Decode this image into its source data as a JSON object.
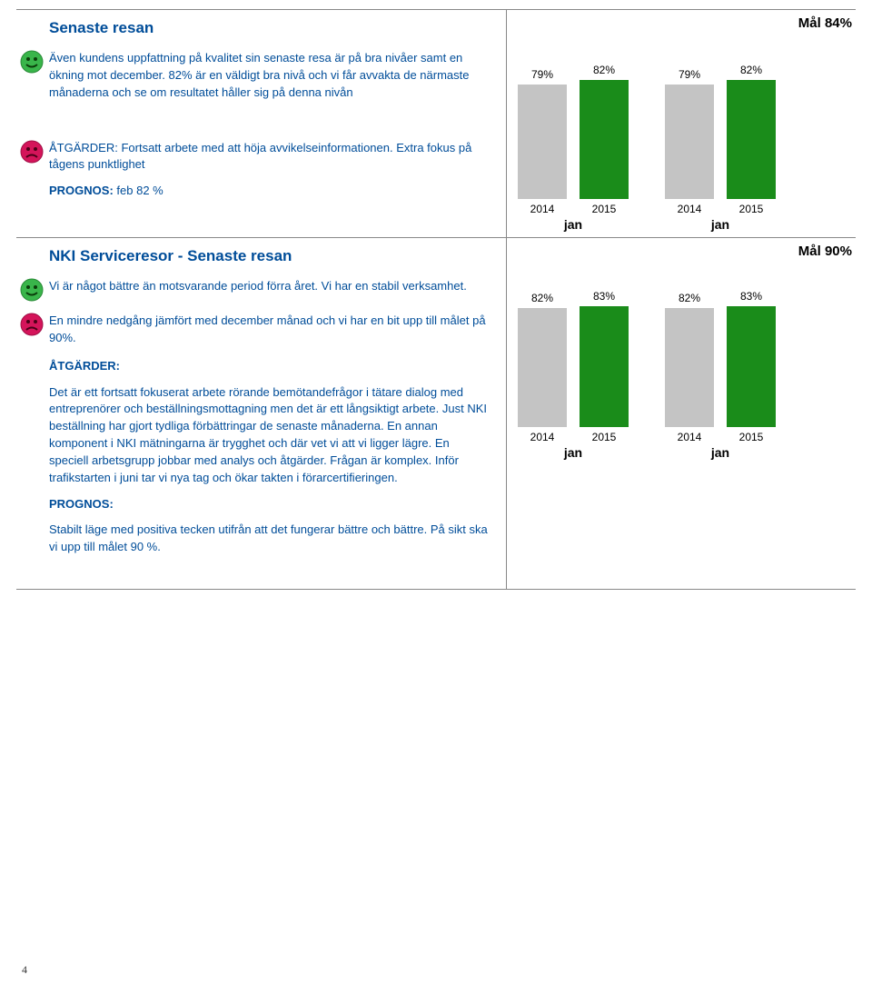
{
  "colors": {
    "heading": "#004d99",
    "body_text": "#004d99",
    "green_face": "#39b54a",
    "red_face": "#d4145a",
    "bar_grey": "#c4c4c4",
    "bar_green": "#1a8c1a",
    "black": "#000000"
  },
  "page_number": "4",
  "section1": {
    "title": "Senaste resan",
    "goal": "Mål 84%",
    "p1": "Även kundens uppfattning på kvalitet sin senaste resa är på bra nivåer samt en ökning mot december. 82% är en väldigt bra nivå och vi får avvakta de närmaste månaderna och se om resultatet håller sig på denna nivån",
    "p2": "ÅTGÄRDER: Fortsatt arbete med att höja avvikelseinformationen. Extra fokus på tågens punktlighet",
    "p3_label": "PROGNOS:",
    "p3": " feb 82 %",
    "chart": {
      "type": "bar",
      "ymax": 100,
      "bar_height_max": 160,
      "bar_colors": [
        "#c4c4c4",
        "#1a8c1a",
        "#c4c4c4",
        "#1a8c1a"
      ],
      "pairs": [
        {
          "xlabel": "jan",
          "bars": [
            {
              "cat": "2014",
              "label": "79%",
              "value": 79
            },
            {
              "cat": "2015",
              "label": "82%",
              "value": 82
            }
          ]
        },
        {
          "xlabel": "jan",
          "bars": [
            {
              "cat": "2014",
              "label": "79%",
              "value": 79
            },
            {
              "cat": "2015",
              "label": "82%",
              "value": 82
            }
          ]
        }
      ]
    }
  },
  "section2": {
    "title": "NKI Serviceresor - Senaste resan",
    "goal": "Mål 90%",
    "p1": "Vi är något bättre än motsvarande period förra året. Vi har en stabil verksamhet.",
    "p2": "En mindre nedgång jämfört med december månad och vi har en bit upp till målet på 90%.",
    "atg_label": "ÅTGÄRDER:",
    "atg": "Det är ett fortsatt fokuserat arbete rörande bemötandefrågor i tätare dialog med entreprenörer och beställningsmottagning men det är ett långsiktigt arbete. Just NKI beställning har gjort tydliga förbättringar de senaste månaderna. En annan komponent i NKI mätningarna är trygghet och där vet vi att vi ligger lägre. En speciell arbetsgrupp jobbar med analys och åtgärder. Frågan är komplex. Inför trafikstarten i juni tar vi nya tag och ökar takten i förarcertifieringen.",
    "prog_label": "PROGNOS:",
    "prog": "Stabilt läge med positiva tecken utifrån att det fungerar bättre och bättre. På sikt ska vi upp till målet 90 %.",
    "chart": {
      "type": "bar",
      "ymax": 100,
      "bar_height_max": 160,
      "bar_colors": [
        "#c4c4c4",
        "#1a8c1a",
        "#c4c4c4",
        "#1a8c1a"
      ],
      "pairs": [
        {
          "xlabel": "jan",
          "bars": [
            {
              "cat": "2014",
              "label": "82%",
              "value": 82
            },
            {
              "cat": "2015",
              "label": "83%",
              "value": 83
            }
          ]
        },
        {
          "xlabel": "jan",
          "bars": [
            {
              "cat": "2014",
              "label": "82%",
              "value": 82
            },
            {
              "cat": "2015",
              "label": "83%",
              "value": 83
            }
          ]
        }
      ]
    }
  }
}
